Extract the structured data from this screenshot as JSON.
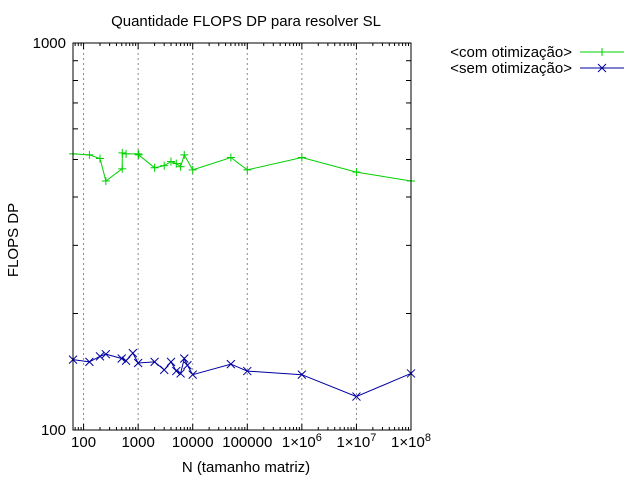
{
  "chart_data": {
    "type": "line",
    "title": "Quantidade FLOPS DP para resolver SL",
    "xlabel": "N (tamanho matriz)",
    "ylabel": "FLOPS DP",
    "x_scale": "log",
    "y_scale": "log",
    "xlim": [
      64,
      100000000
    ],
    "ylim": [
      100,
      1000
    ],
    "x_ticks": [
      {
        "value": 100,
        "label": "100"
      },
      {
        "value": 1000,
        "label": "1000"
      },
      {
        "value": 10000,
        "label": "10000"
      },
      {
        "value": 100000,
        "label": "100000"
      },
      {
        "value": 1000000,
        "label": "1×10",
        "sup": "6"
      },
      {
        "value": 10000000,
        "label": "1×10",
        "sup": "7"
      },
      {
        "value": 100000000,
        "label": "1×10",
        "sup": "8"
      }
    ],
    "y_ticks": [
      {
        "value": 100,
        "label": "100"
      },
      {
        "value": 1000,
        "label": "1000"
      }
    ],
    "grid": "vertical dashed at major x ticks",
    "legend_position": "outside top-right",
    "series": [
      {
        "name": "<com otimização>",
        "color": "#00d000",
        "marker": "plus",
        "points": [
          {
            "x": 64,
            "y": 517
          },
          {
            "x": 128,
            "y": 514
          },
          {
            "x": 200,
            "y": 503
          },
          {
            "x": 256,
            "y": 440
          },
          {
            "x": 511,
            "y": 473
          },
          {
            "x": 512,
            "y": 520
          },
          {
            "x": 600,
            "y": 517
          },
          {
            "x": 1000,
            "y": 517
          },
          {
            "x": 1024,
            "y": 514
          },
          {
            "x": 2000,
            "y": 476
          },
          {
            "x": 3000,
            "y": 482
          },
          {
            "x": 4000,
            "y": 494
          },
          {
            "x": 5000,
            "y": 488
          },
          {
            "x": 6000,
            "y": 479
          },
          {
            "x": 7000,
            "y": 514
          },
          {
            "x": 10000,
            "y": 470
          },
          {
            "x": 50000,
            "y": 506
          },
          {
            "x": 100000,
            "y": 470
          },
          {
            "x": 1000000,
            "y": 506
          },
          {
            "x": 10000000,
            "y": 464
          },
          {
            "x": 100000000,
            "y": 440
          }
        ]
      },
      {
        "name": "<sem otimização>",
        "color": "#0000a0",
        "marker": "x",
        "points": [
          {
            "x": 64,
            "y": 152
          },
          {
            "x": 128,
            "y": 150
          },
          {
            "x": 200,
            "y": 155
          },
          {
            "x": 256,
            "y": 157
          },
          {
            "x": 500,
            "y": 153
          },
          {
            "x": 600,
            "y": 151
          },
          {
            "x": 800,
            "y": 158
          },
          {
            "x": 1000,
            "y": 149
          },
          {
            "x": 2000,
            "y": 150
          },
          {
            "x": 3000,
            "y": 143
          },
          {
            "x": 4000,
            "y": 150
          },
          {
            "x": 5000,
            "y": 142
          },
          {
            "x": 6000,
            "y": 140
          },
          {
            "x": 7000,
            "y": 153
          },
          {
            "x": 8000,
            "y": 147
          },
          {
            "x": 10000,
            "y": 139
          },
          {
            "x": 50000,
            "y": 148
          },
          {
            "x": 100000,
            "y": 142
          },
          {
            "x": 1000000,
            "y": 139
          },
          {
            "x": 10000000,
            "y": 122
          },
          {
            "x": 100000000,
            "y": 140
          }
        ]
      }
    ]
  }
}
